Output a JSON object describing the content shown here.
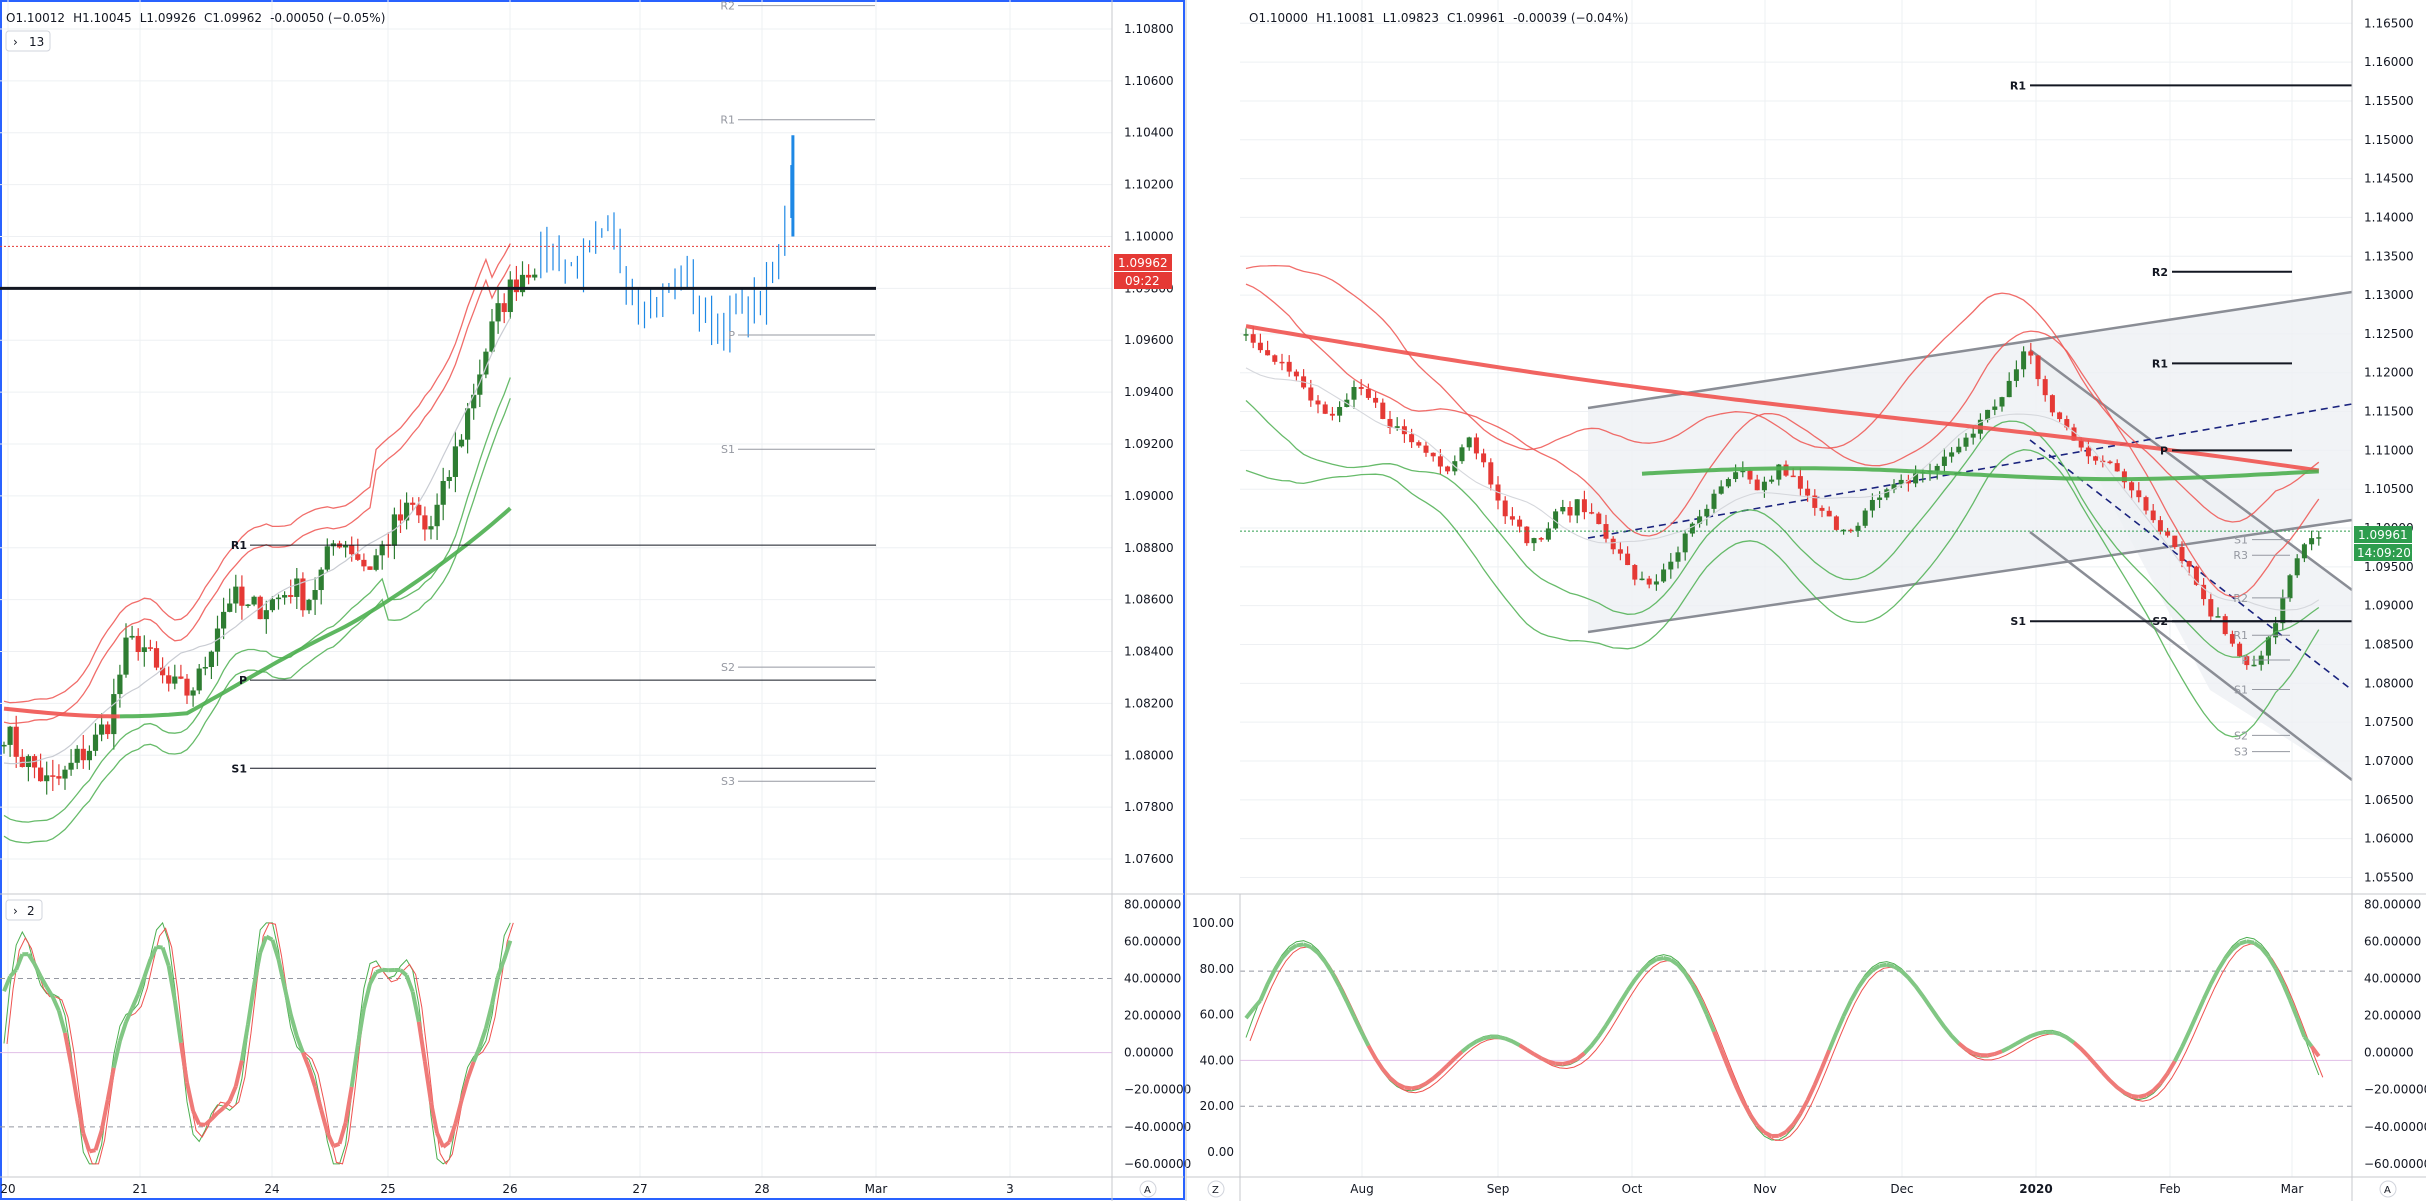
{
  "colors": {
    "up_candle": "#2e7d32",
    "down_candle": "#e53935",
    "blue_bar": "#1e88e5",
    "bb_upper": "#ef5350",
    "bb_lower": "#4caf50",
    "ma_red": "#ef5350",
    "ma_green": "#4caf50",
    "grid": "#eef0f3",
    "price_badge_red": "#e53935",
    "price_badge_green": "#2e9d4e",
    "pivot_gray": "#9598a1",
    "channel_gray": "#8a8d95",
    "trend_blue": "#1a237e"
  },
  "left": {
    "ohlc": {
      "o": "O1.10012",
      "h": "H1.10045",
      "l": "L1.09926",
      "c": "C1.09962",
      "chg": "-0.00050 (−0.05%)"
    },
    "collapse_label": "13",
    "osc_collapse_label": "2",
    "price_badge": "1.09962",
    "time_badge": "09:22",
    "pivots": [
      {
        "label": "R2",
        "price": 1.109
      },
      {
        "label": "R1",
        "price": 1.1045
      },
      {
        "label": "P",
        "price": 1.0962
      },
      {
        "label": "S1",
        "price": 1.0918
      },
      {
        "label": "R1",
        "price": 1.0881
      },
      {
        "label": "P",
        "price": 1.0829
      },
      {
        "label": "S2",
        "price": 1.0834
      },
      {
        "label": "S1",
        "price": 1.0795
      },
      {
        "label": "S3",
        "price": 1.079
      }
    ],
    "price_ticks": [
      "1.10800",
      "1.10600",
      "1.10400",
      "1.10200",
      "1.10000",
      "1.09800",
      "1.09600",
      "1.09400",
      "1.09200",
      "1.09000",
      "1.08800",
      "1.08600",
      "1.08400",
      "1.08200",
      "1.08000",
      "1.07800",
      "1.07600"
    ],
    "osc_ticks": [
      "80.00000",
      "60.00000",
      "40.00000",
      "20.00000",
      "0.00000",
      "−20.00000",
      "−40.00000",
      "−60.00000"
    ],
    "x_ticks": [
      "20",
      "21",
      "24",
      "25",
      "26",
      "27",
      "28",
      "Mar",
      "3"
    ],
    "corner_label": "A"
  },
  "right": {
    "ohlc": {
      "o": "O1.10000",
      "h": "H1.10081",
      "l": "L1.09823",
      "c": "C1.09961",
      "chg": "-0.00039 (−0.04%)"
    },
    "price_badge": "1.09961",
    "time_badge": "14:09:20",
    "pivots_black": [
      {
        "label": "R1",
        "price": 1.157
      },
      {
        "label": "R2",
        "price": 1.133
      },
      {
        "label": "R1",
        "price": 1.1212
      },
      {
        "label": "P",
        "price": 1.11
      },
      {
        "label": "S1",
        "price": 1.088
      },
      {
        "label": "S2",
        "price": 1.088
      }
    ],
    "pivots_small": [
      {
        "label": "S1",
        "price": 1.0985
      },
      {
        "label": "R3",
        "price": 1.0965
      },
      {
        "label": "R2",
        "price": 1.091
      },
      {
        "label": "R1",
        "price": 1.086
      },
      {
        "label": "P",
        "price": 1.0828
      },
      {
        "label": "S1",
        "price": 1.079
      },
      {
        "label": "S2",
        "price": 1.073
      },
      {
        "label": "S3",
        "price": 1.071
      }
    ],
    "price_ticks": [
      "1.16500",
      "1.16000",
      "1.15500",
      "1.15000",
      "1.14500",
      "1.14000",
      "1.13500",
      "1.13000",
      "1.12500",
      "1.12000",
      "1.11500",
      "1.11000",
      "1.10500",
      "1.10000",
      "1.09500",
      "1.09000",
      "1.08500",
      "1.08000",
      "1.07500",
      "1.07000",
      "1.06500",
      "1.06000",
      "1.05500"
    ],
    "osc_left_ticks": [
      "100.00",
      "80.00",
      "60.00",
      "40.00",
      "20.00",
      "0.00"
    ],
    "osc_right_ticks": [
      "80.00000",
      "60.00000",
      "40.00000",
      "20.00000",
      "0.00000",
      "−20.00000",
      "−40.00000",
      "−60.00000"
    ],
    "x_ticks": [
      "Aug",
      "Sep",
      "Oct",
      "Nov",
      "Dec",
      "2020",
      "Feb",
      "Mar"
    ],
    "corner_left": "Z",
    "corner_right": "A"
  },
  "chart_data": [
    {
      "type": "candlestick",
      "title": "",
      "ylim": [
        1.075,
        1.109
      ],
      "x_labels": [
        "20",
        "21",
        "24",
        "25",
        "26",
        "27",
        "28",
        "Mar",
        "3"
      ],
      "close_path": [
        1.081,
        1.08,
        1.0795,
        1.0788,
        1.0792,
        1.08,
        1.0805,
        1.0815,
        1.084,
        1.0845,
        1.0832,
        1.0826,
        1.0824,
        1.083,
        1.085,
        1.0862,
        1.0855,
        1.0858,
        1.086,
        1.0865,
        1.086,
        1.087,
        1.0885,
        1.088,
        1.0872,
        1.088,
        1.089,
        1.0895,
        1.0885,
        1.09,
        1.092,
        1.094,
        1.096,
        1.0975,
        1.0985,
        1.099,
        1.0995,
        1.099,
        1.0988,
        1.0995,
        1.1,
        1.0985,
        1.0975,
        1.0975,
        1.098,
        1.0985,
        1.0968,
        1.0965,
        1.0968,
        1.0972,
        1.0975,
        1.0985,
        1.103
      ]
    },
    {
      "type": "candlestick",
      "title": "",
      "ylim": [
        1.053,
        1.168
      ],
      "x_labels": [
        "Aug",
        "Sep",
        "Oct",
        "Nov",
        "Dec",
        "2020",
        "Feb",
        "Mar"
      ],
      "close_path": [
        1.125,
        1.123,
        1.12,
        1.116,
        1.114,
        1.118,
        1.115,
        1.112,
        1.11,
        1.108,
        1.112,
        1.106,
        1.1,
        1.098,
        1.102,
        1.103,
        1.1,
        1.095,
        1.092,
        1.096,
        1.1,
        1.104,
        1.107,
        1.105,
        1.108,
        1.104,
        1.101,
        1.1,
        1.103,
        1.105,
        1.107,
        1.108,
        1.111,
        1.114,
        1.118,
        1.123,
        1.115,
        1.112,
        1.109,
        1.107,
        1.104,
        1.1,
        1.096,
        1.09,
        1.086,
        1.082,
        1.087,
        1.096,
        1.0995
      ]
    }
  ]
}
